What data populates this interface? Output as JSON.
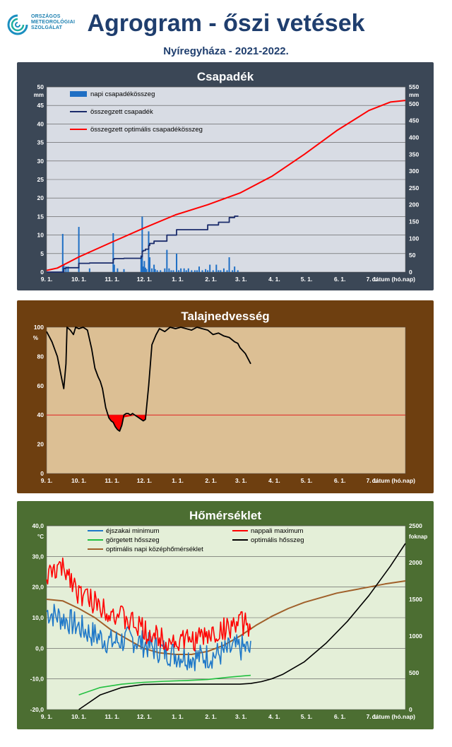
{
  "header": {
    "logo_lines": [
      "ORSZÁGOS",
      "METEOROLÓGIAI",
      "SZOLGÁLAT"
    ],
    "title": "Agrogram - őszi vetések",
    "subtitle": "Nyíregyháza - 2021-2022."
  },
  "x_axis": {
    "tick_labels": [
      "9. 1.",
      "10. 1.",
      "11. 1.",
      "12. 1.",
      "1. 1.",
      "2. 1.",
      "3. 1.",
      "4. 1.",
      "5. 1.",
      "6. 1.",
      "7. 1."
    ],
    "label": "dátum (hó.nap)"
  },
  "chart_data": [
    {
      "type": "bar+line",
      "title": "Csapadék",
      "ylabel_left": "mm",
      "ylabel_right": "mm",
      "ylim_left": [
        0,
        50
      ],
      "ylim_right": [
        0,
        550
      ],
      "y_ticks_left": [
        0,
        5,
        10,
        15,
        20,
        25,
        30,
        35,
        40,
        45,
        50
      ],
      "y_ticks_right": [
        0,
        50,
        100,
        150,
        200,
        250,
        300,
        350,
        400,
        450,
        500,
        550
      ],
      "xlim_days": [
        0,
        334
      ],
      "grid": true,
      "legend_position": "top-left",
      "colors": {
        "plot_bg": "#d8dce4",
        "bars": "#1f6fc4",
        "cumulative": "#1a2b6b",
        "optimal": "#ff0000"
      },
      "series": [
        {
          "name": "napi csapadékösszeg",
          "axis": "left",
          "kind": "bar",
          "x": [
            15,
            16,
            18,
            20,
            30,
            40,
            62,
            63,
            66,
            72,
            88,
            89,
            90,
            91,
            92,
            93,
            95,
            96,
            98,
            100,
            101,
            103,
            106,
            110,
            112,
            114,
            116,
            118,
            121,
            123,
            125,
            128,
            130,
            132,
            135,
            138,
            140,
            142,
            145,
            148,
            150,
            152,
            155,
            158,
            160,
            162,
            165,
            168,
            170,
            173,
            175,
            178
          ],
          "values": [
            10.3,
            2,
            1.5,
            1.5,
            12.2,
            1,
            10.5,
            2,
            1,
            0.8,
            4.5,
            15,
            1.5,
            3,
            1.2,
            0.8,
            11,
            4,
            1,
            2,
            0.8,
            0.5,
            0.5,
            1,
            6,
            1,
            0.5,
            0.5,
            5,
            0.5,
            1,
            1,
            0.5,
            1,
            0.5,
            0.5,
            0.5,
            1.5,
            0.5,
            0.8,
            0.5,
            2,
            0.5,
            2,
            0.5,
            0.5,
            1,
            0.5,
            4,
            0.5,
            1.5,
            0.5
          ]
        },
        {
          "name": "összegzett csapadék",
          "axis": "right",
          "kind": "line",
          "x": [
            0,
            15,
            16,
            18,
            30,
            40,
            60,
            62,
            63,
            72,
            88,
            89,
            90,
            92,
            95,
            96,
            100,
            112,
            121,
            150,
            160,
            170,
            175,
            178
          ],
          "values": [
            0,
            0,
            11,
            13,
            26,
            27,
            27,
            38,
            40,
            41,
            46,
            62,
            64,
            68,
            79,
            85,
            92,
            110,
            126,
            140,
            148,
            162,
            166,
            168
          ]
        },
        {
          "name": "összegzett optimális csapadékösszeg",
          "axis": "right",
          "kind": "line",
          "x": [
            0,
            10,
            30,
            60,
            90,
            120,
            150,
            180,
            210,
            240,
            270,
            300,
            320,
            334
          ],
          "values": [
            5,
            12,
            45,
            88,
            130,
            170,
            200,
            235,
            285,
            350,
            420,
            480,
            505,
            510
          ]
        }
      ]
    },
    {
      "type": "line",
      "title": "Talajnedvesség",
      "ylabel": "%",
      "ylim": [
        0,
        100
      ],
      "y_ticks": [
        0,
        20,
        40,
        60,
        80,
        100
      ],
      "xlim_days": [
        0,
        334
      ],
      "grid": false,
      "threshold": 40,
      "colors": {
        "plot_bg": "#dcbf94",
        "line": "#000000",
        "threshold": "#e02020",
        "deficit_fill": "#ff0000"
      },
      "series": [
        {
          "name": "",
          "x": [
            0,
            5,
            10,
            14,
            16,
            18,
            19,
            22,
            25,
            27,
            30,
            34,
            38,
            42,
            45,
            48,
            50,
            52,
            55,
            58,
            60,
            62,
            64,
            66,
            68,
            70,
            72,
            74,
            76,
            78,
            80,
            82,
            84,
            86,
            88,
            90,
            92,
            95,
            98,
            102,
            105,
            110,
            115,
            120,
            125,
            130,
            135,
            140,
            145,
            150,
            155,
            160,
            165,
            170,
            175,
            178,
            180,
            185,
            190
          ],
          "values": [
            97,
            90,
            80,
            65,
            58,
            75,
            100,
            98,
            95,
            100,
            99,
            100,
            98,
            85,
            72,
            66,
            63,
            58,
            45,
            38,
            36,
            35,
            32,
            30,
            29,
            33,
            40,
            41,
            41,
            40,
            41,
            40,
            39,
            38,
            37,
            36,
            37,
            60,
            88,
            95,
            99,
            97,
            100,
            99,
            100,
            99,
            98,
            100,
            99,
            98,
            95,
            96,
            94,
            93,
            90,
            89,
            86,
            82,
            75
          ]
        }
      ]
    },
    {
      "type": "line",
      "title": "Hőmérséklet",
      "ylabel_left": "°C",
      "ylabel_right": "foknap",
      "ylim_left": [
        -20,
        40
      ],
      "ylim_right": [
        0,
        2500
      ],
      "y_ticks_left": [
        "-20,0",
        "-10,0",
        "0,0",
        "10,0",
        "20,0",
        "30,0",
        "40,0"
      ],
      "y_ticks_right": [
        0,
        500,
        1000,
        1500,
        2000,
        2500
      ],
      "xlim_days": [
        0,
        334
      ],
      "grid": true,
      "legend_position": "top-center",
      "colors": {
        "plot_bg": "#e4efd8",
        "min": "#1f78c8",
        "max": "#ff0000",
        "cum": "#22c040",
        "optcum": "#000000",
        "optmean": "#a0602a"
      },
      "series": [
        {
          "name": "éjszakai minimum",
          "axis": "left",
          "kind": "noise",
          "x": [
            0,
            20,
            40,
            60,
            80,
            100,
            120,
            140,
            160,
            175,
            185,
            190
          ],
          "values": [
            12,
            9,
            5,
            2,
            3,
            0,
            -2,
            -3,
            -2,
            0,
            0,
            -1
          ],
          "amplitude": 4.5
        },
        {
          "name": "nappali maximum",
          "axis": "left",
          "kind": "noise",
          "x": [
            0,
            10,
            20,
            30,
            45,
            60,
            80,
            100,
            120,
            140,
            160,
            175,
            185,
            190
          ],
          "values": [
            23,
            26,
            25,
            18,
            15,
            12,
            8,
            4,
            2,
            3,
            5,
            8,
            8,
            6
          ],
          "amplitude": 4
        },
        {
          "name": "görgetett hősszeg",
          "axis": "right",
          "kind": "line",
          "x": [
            30,
            50,
            70,
            90,
            110,
            130,
            150,
            170,
            185,
            190
          ],
          "values": [
            200,
            300,
            345,
            370,
            385,
            395,
            410,
            440,
            460,
            465
          ]
        },
        {
          "name": "optimális hősszeg",
          "axis": "right",
          "kind": "line",
          "x": [
            30,
            40,
            50,
            70,
            90,
            110,
            130,
            150,
            170,
            180,
            190,
            200,
            210,
            220,
            240,
            260,
            280,
            300,
            320,
            334
          ],
          "values": [
            0,
            100,
            200,
            300,
            340,
            345,
            345,
            345,
            345,
            345,
            355,
            380,
            420,
            480,
            650,
            900,
            1200,
            1550,
            1950,
            2260
          ]
        },
        {
          "name": "optimális napi középhőmérséklet",
          "axis": "left",
          "kind": "line",
          "x": [
            0,
            15,
            30,
            45,
            60,
            75,
            90,
            105,
            120,
            135,
            150,
            165,
            180,
            195,
            210,
            225,
            240,
            255,
            270,
            285,
            300,
            315,
            334
          ],
          "values": [
            16,
            15.5,
            13,
            10,
            6,
            3,
            0,
            -1.5,
            -2,
            -2,
            -1,
            1,
            4,
            7.5,
            10.5,
            13,
            15,
            16.5,
            18,
            19,
            20,
            21,
            22
          ]
        }
      ]
    }
  ]
}
